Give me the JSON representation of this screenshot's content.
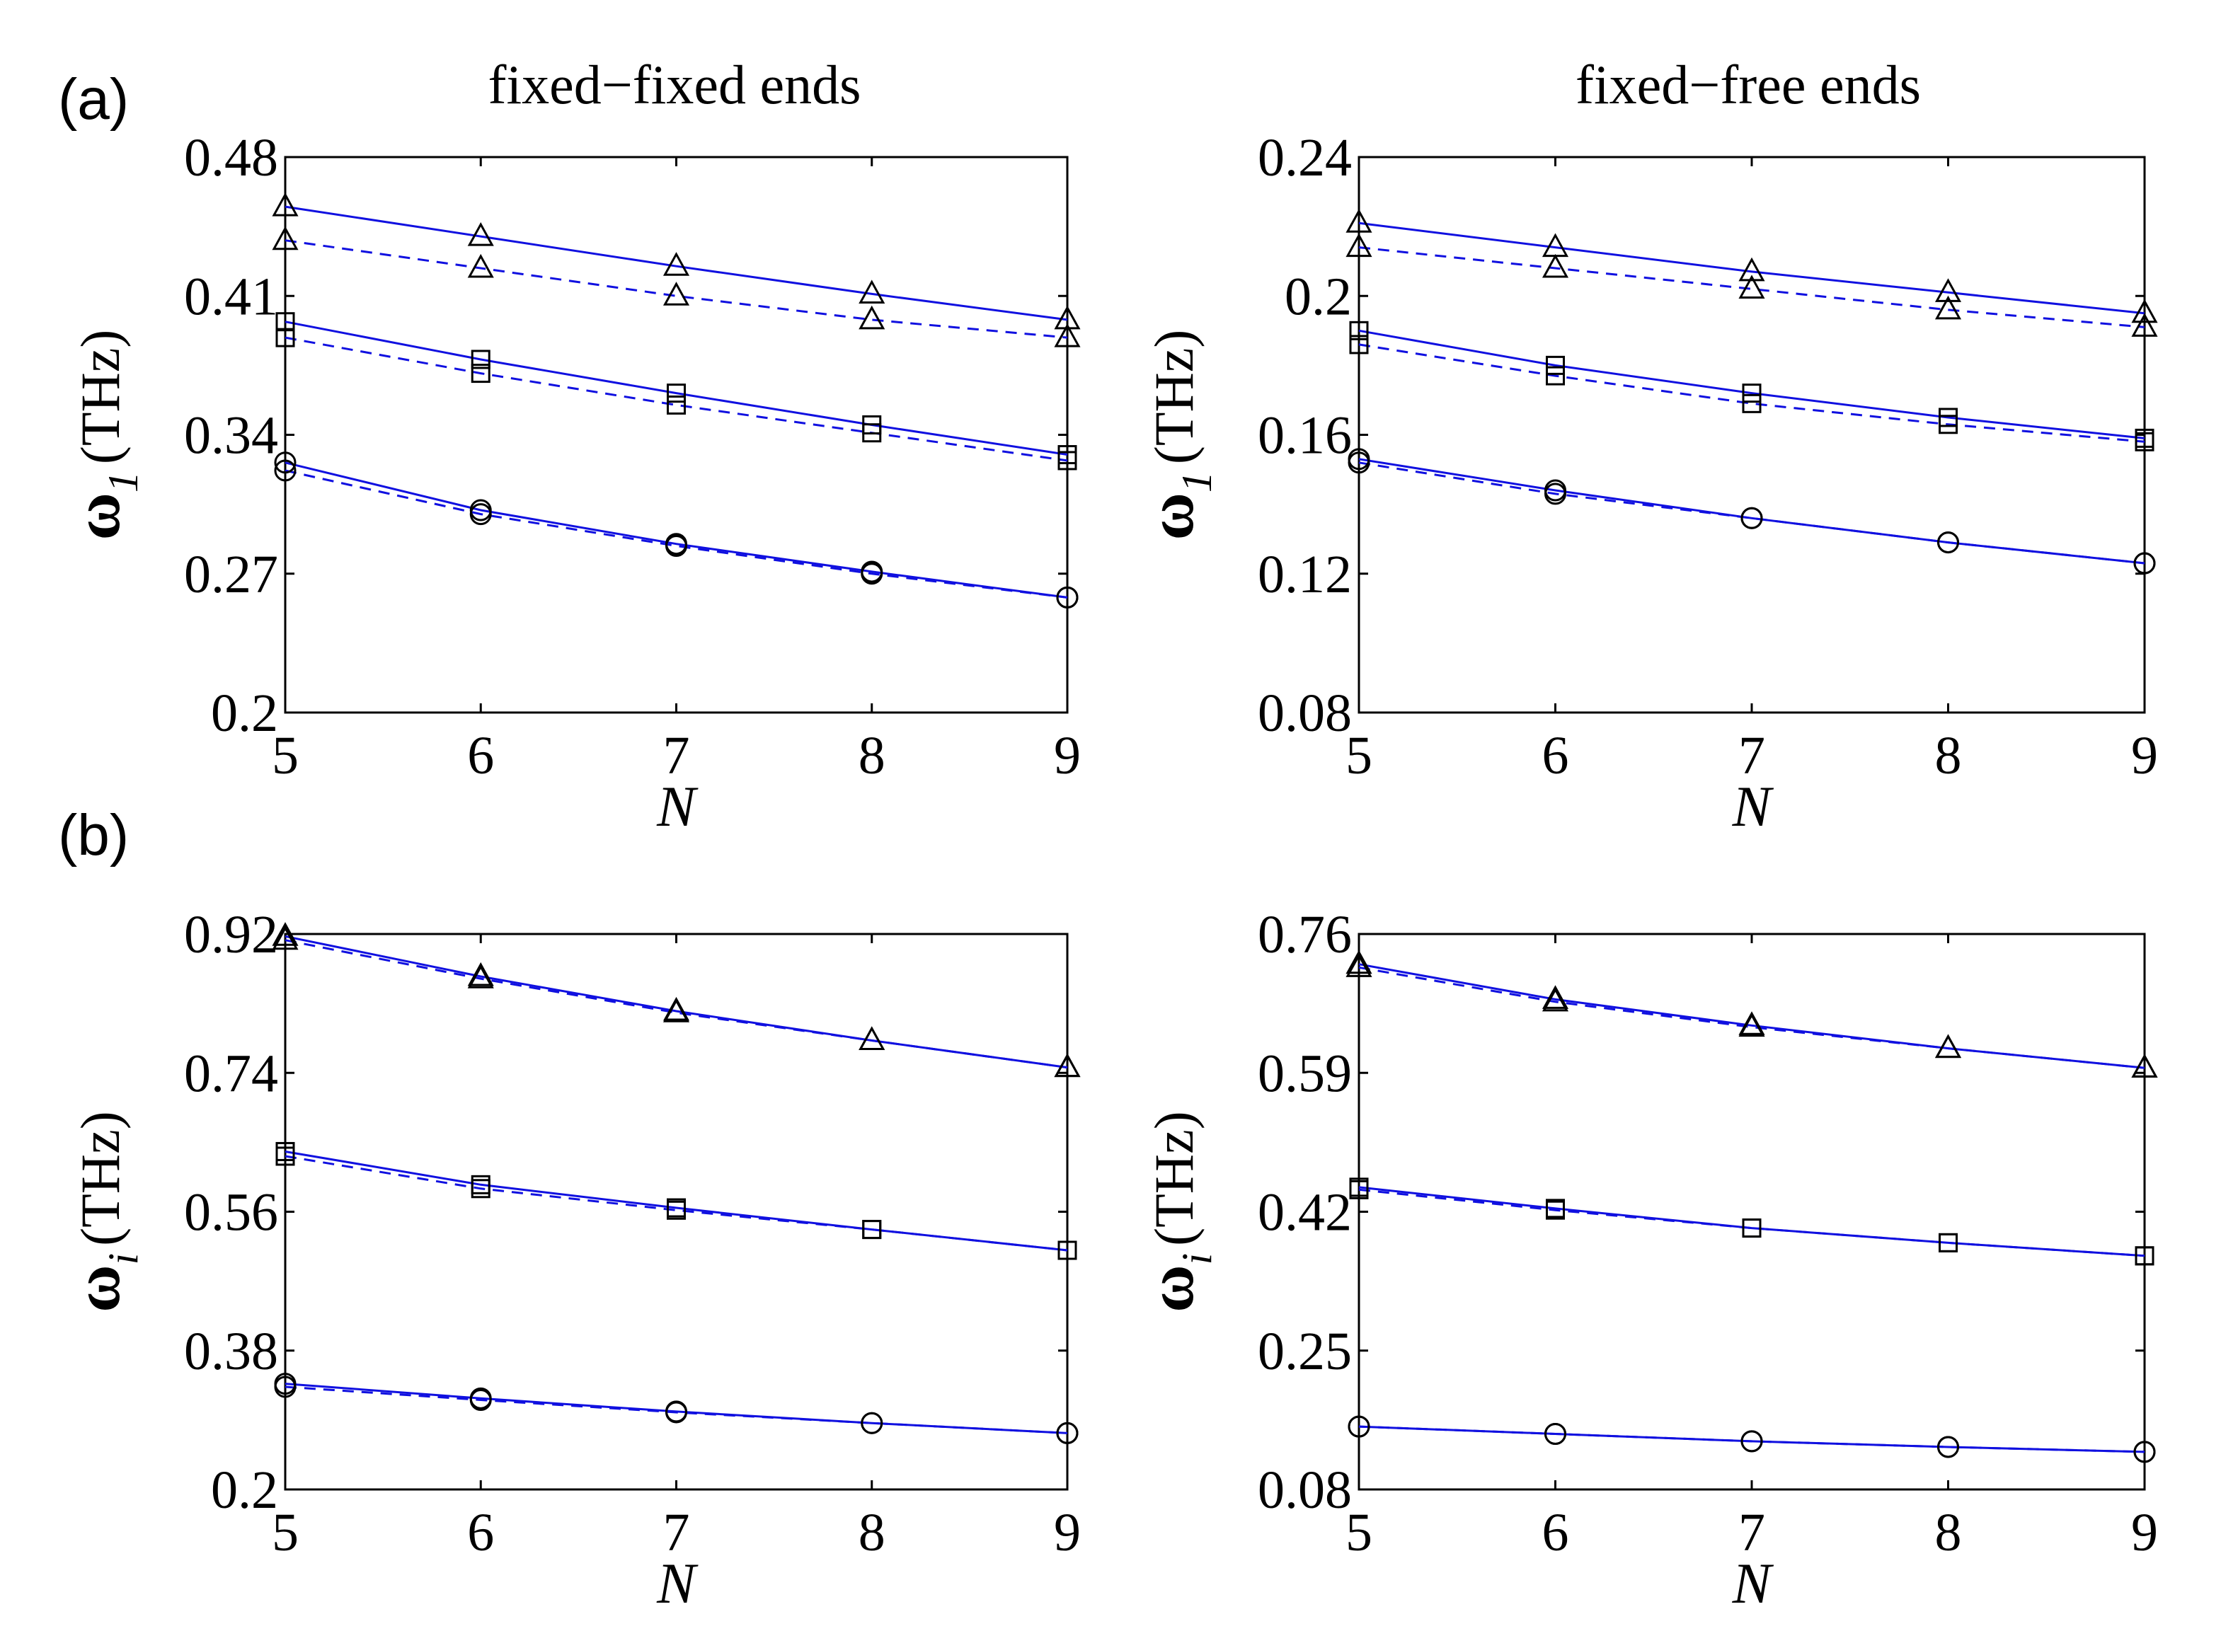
{
  "panel_labels": {
    "a": "(a)",
    "b": "(b)"
  },
  "column_titles": [
    "fixed−fixed ends",
    "fixed−free ends"
  ],
  "colors": {
    "line": "#1010e0",
    "marker": "#000000",
    "axis": "#000000"
  },
  "chart_data": [
    {
      "id": "a-left",
      "type": "line",
      "title": "fixed−fixed ends",
      "xlabel": "N",
      "ylabel_main": "ω",
      "ylabel_sub": "1",
      "ylabel_unit": "(THz)",
      "xlim": [
        5,
        9
      ],
      "ylim": [
        0.2,
        0.48
      ],
      "xticks": [
        5,
        6,
        7,
        8,
        9
      ],
      "xticklabels": [
        "5",
        "6",
        "7",
        "8",
        "9"
      ],
      "yticks": [
        0.2,
        0.27,
        0.34,
        0.41,
        0.48
      ],
      "yticklabels": [
        "0.2",
        "0.27",
        "0.34",
        "0.41",
        "0.48"
      ],
      "x": [
        5,
        6,
        7,
        8,
        9
      ],
      "series": [
        {
          "name": "triangle solid",
          "marker": "triangle",
          "dash": false,
          "values": [
            0.455,
            0.44,
            0.425,
            0.411,
            0.398
          ]
        },
        {
          "name": "triangle dashed",
          "marker": "triangle",
          "dash": true,
          "values": [
            0.438,
            0.424,
            0.41,
            0.398,
            0.389
          ]
        },
        {
          "name": "square solid",
          "marker": "square",
          "dash": false,
          "values": [
            0.397,
            0.378,
            0.361,
            0.345,
            0.33
          ]
        },
        {
          "name": "square dashed",
          "marker": "square",
          "dash": true,
          "values": [
            0.389,
            0.371,
            0.355,
            0.341,
            0.327
          ]
        },
        {
          "name": "circle solid",
          "marker": "circle",
          "dash": false,
          "values": [
            0.326,
            0.302,
            0.285,
            0.271,
            0.258
          ]
        },
        {
          "name": "circle dashed",
          "marker": "circle",
          "dash": true,
          "values": [
            0.322,
            0.3,
            0.284,
            0.27,
            0.258
          ]
        }
      ]
    },
    {
      "id": "a-right",
      "type": "line",
      "title": "fixed−free ends",
      "xlabel": "N",
      "ylabel_main": "ω",
      "ylabel_sub": "1",
      "ylabel_unit": "(THz)",
      "xlim": [
        5,
        9
      ],
      "ylim": [
        0.08,
        0.24
      ],
      "xticks": [
        5,
        6,
        7,
        8,
        9
      ],
      "xticklabels": [
        "5",
        "6",
        "7",
        "8",
        "9"
      ],
      "yticks": [
        0.08,
        0.12,
        0.16,
        0.2,
        0.24
      ],
      "yticklabels": [
        "0.08",
        "0.12",
        "0.16",
        "0.2",
        "0.24"
      ],
      "x": [
        5,
        6,
        7,
        8,
        9
      ],
      "series": [
        {
          "name": "triangle solid",
          "marker": "triangle",
          "dash": false,
          "values": [
            0.221,
            0.214,
            0.207,
            0.201,
            0.195
          ]
        },
        {
          "name": "triangle dashed",
          "marker": "triangle",
          "dash": true,
          "values": [
            0.214,
            0.208,
            0.202,
            0.196,
            0.191
          ]
        },
        {
          "name": "square solid",
          "marker": "square",
          "dash": false,
          "values": [
            0.19,
            0.18,
            0.172,
            0.165,
            0.159
          ]
        },
        {
          "name": "square dashed",
          "marker": "square",
          "dash": true,
          "values": [
            0.186,
            0.177,
            0.169,
            0.163,
            0.158
          ]
        },
        {
          "name": "circle solid",
          "marker": "circle",
          "dash": false,
          "values": [
            0.153,
            0.144,
            0.136,
            0.129,
            0.123
          ]
        },
        {
          "name": "circle dashed",
          "marker": "circle",
          "dash": true,
          "values": [
            0.152,
            0.143,
            0.136,
            0.129,
            0.123
          ]
        }
      ]
    },
    {
      "id": "b-left",
      "type": "line",
      "title": "",
      "xlabel": "N",
      "ylabel_main": "ω",
      "ylabel_sub": "i",
      "ylabel_unit": "(THz)",
      "xlim": [
        5,
        9
      ],
      "ylim": [
        0.2,
        0.92
      ],
      "xticks": [
        5,
        6,
        7,
        8,
        9
      ],
      "xticklabels": [
        "5",
        "6",
        "7",
        "8",
        "9"
      ],
      "yticks": [
        0.2,
        0.38,
        0.56,
        0.74,
        0.92
      ],
      "yticklabels": [
        "0.2",
        "0.38",
        "0.56",
        "0.74",
        "0.92"
      ],
      "x": [
        5,
        6,
        7,
        8,
        9
      ],
      "series": [
        {
          "name": "triangle solid",
          "marker": "triangle",
          "dash": false,
          "values": [
            0.917,
            0.865,
            0.82,
            0.782,
            0.747
          ]
        },
        {
          "name": "triangle dashed",
          "marker": "triangle",
          "dash": true,
          "values": [
            0.912,
            0.862,
            0.818,
            0.782,
            0.747
          ]
        },
        {
          "name": "square solid",
          "marker": "square",
          "dash": false,
          "values": [
            0.638,
            0.595,
            0.565,
            0.537,
            0.51
          ]
        },
        {
          "name": "square dashed",
          "marker": "square",
          "dash": true,
          "values": [
            0.632,
            0.59,
            0.562,
            0.537,
            0.51
          ]
        },
        {
          "name": "circle solid",
          "marker": "circle",
          "dash": false,
          "values": [
            0.337,
            0.318,
            0.301,
            0.286,
            0.273
          ]
        },
        {
          "name": "circle dashed",
          "marker": "circle",
          "dash": true,
          "values": [
            0.333,
            0.316,
            0.3,
            0.286,
            0.273
          ]
        }
      ]
    },
    {
      "id": "b-right",
      "type": "line",
      "title": "",
      "xlabel": "N",
      "ylabel_main": "ω",
      "ylabel_sub": "i",
      "ylabel_unit": "(THz)",
      "xlim": [
        5,
        9
      ],
      "ylim": [
        0.08,
        0.76
      ],
      "xticks": [
        5,
        6,
        7,
        8,
        9
      ],
      "xticklabels": [
        "5",
        "6",
        "7",
        "8",
        "9"
      ],
      "yticks": [
        0.08,
        0.25,
        0.42,
        0.59,
        0.76
      ],
      "yticklabels": [
        "0.08",
        "0.25",
        "0.42",
        "0.59",
        "0.76"
      ],
      "x": [
        5,
        6,
        7,
        8,
        9
      ],
      "series": [
        {
          "name": "triangle solid",
          "marker": "triangle",
          "dash": false,
          "values": [
            0.723,
            0.68,
            0.648,
            0.62,
            0.596
          ]
        },
        {
          "name": "triangle dashed",
          "marker": "triangle",
          "dash": true,
          "values": [
            0.719,
            0.677,
            0.646,
            0.62,
            0.596
          ]
        },
        {
          "name": "square solid",
          "marker": "square",
          "dash": false,
          "values": [
            0.45,
            0.424,
            0.4,
            0.382,
            0.366
          ]
        },
        {
          "name": "square dashed",
          "marker": "square",
          "dash": true,
          "values": [
            0.447,
            0.422,
            0.4,
            0.382,
            0.366
          ]
        },
        {
          "name": "circle solid",
          "marker": "circle",
          "dash": false,
          "values": [
            0.157,
            0.148,
            0.139,
            0.132,
            0.126
          ]
        },
        {
          "name": "circle dashed",
          "marker": "circle",
          "dash": true,
          "values": [
            0.157,
            0.148,
            0.139,
            0.132,
            0.126
          ]
        }
      ]
    }
  ]
}
